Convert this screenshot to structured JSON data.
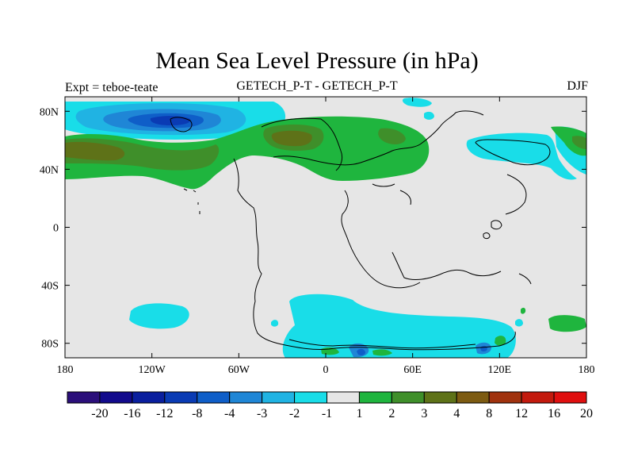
{
  "title": "Mean Sea Level Pressure (in hPa)",
  "left_label": "Expt = teboe-teate",
  "center_label": "GETECH_P-T - GETECH_P-T",
  "right_label": "DJF",
  "chart_data": {
    "type": "heatmap",
    "projection": "cylindrical-equidistant",
    "title": "Mean Sea Level Pressure (in hPa)",
    "units": "hPa",
    "x_ticks": [
      "180",
      "120W",
      "60W",
      "0",
      "60E",
      "120E",
      "180"
    ],
    "x_tick_values": [
      -180,
      -120,
      -60,
      0,
      60,
      120,
      180
    ],
    "y_ticks": [
      "80N",
      "40N",
      "0",
      "40S",
      "80S"
    ],
    "y_tick_values": [
      80,
      40,
      0,
      -40,
      -80
    ],
    "lon_range": [
      -180,
      180
    ],
    "lat_range": [
      -90,
      90
    ],
    "colorbar": {
      "labels": [
        "-20",
        "-16",
        "-12",
        "-8",
        "-4",
        "-3",
        "-2",
        "-1",
        "1",
        "2",
        "3",
        "4",
        "8",
        "12",
        "16",
        "20"
      ],
      "colors": [
        "#2b0f7a",
        "#120a8c",
        "#0a1f9e",
        "#0a3bb4",
        "#0f5ec8",
        "#1f86d6",
        "#20b3e3",
        "#19dde8",
        "#e6e6e6",
        "#1fb53e",
        "#3f8f2a",
        "#5e7218",
        "#7d5b12",
        "#a0320e",
        "#c31a0e",
        "#e00f0f"
      ]
    },
    "fields": [
      {
        "name": "north-pacific-low",
        "value_range": "-12 to -2",
        "center": [
          -110,
          77
        ]
      },
      {
        "name": "north-hemisphere-high-band",
        "value_range": "1 to 4",
        "center": [
          -20,
          55
        ]
      },
      {
        "name": "south-pacific-low",
        "value_range": "-2 to -1",
        "center": [
          -125,
          -62
        ]
      },
      {
        "name": "southern-ocean-low",
        "value_range": "-4 to -1",
        "center": [
          60,
          -72
        ]
      },
      {
        "name": "southeast-pacific-high",
        "value_range": "1 to 2",
        "center": [
          162,
          -66
        ]
      }
    ]
  }
}
